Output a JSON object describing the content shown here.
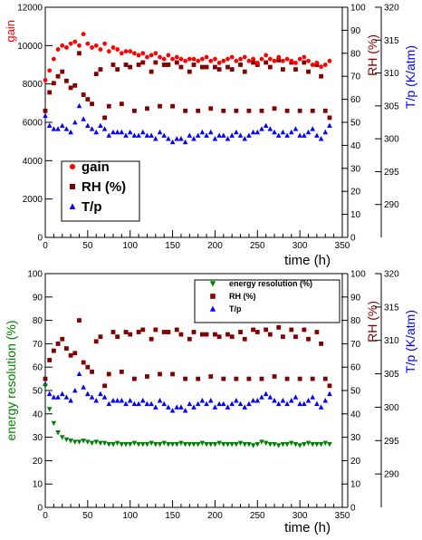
{
  "chart_data": [
    {
      "type": "scatter",
      "x": [
        0,
        5,
        10,
        15,
        20,
        25,
        30,
        35,
        40,
        45,
        50,
        55,
        60,
        65,
        70,
        75,
        80,
        85,
        90,
        95,
        100,
        105,
        110,
        115,
        120,
        125,
        130,
        135,
        140,
        145,
        150,
        155,
        160,
        165,
        170,
        175,
        180,
        185,
        190,
        195,
        200,
        205,
        210,
        215,
        220,
        225,
        230,
        235,
        240,
        245,
        250,
        255,
        260,
        265,
        270,
        275,
        280,
        285,
        290,
        295,
        300,
        305,
        310,
        315,
        320,
        325,
        330,
        335
      ],
      "xlabel": "time (h)",
      "xlim": [
        0,
        350
      ],
      "xticks": [
        "0",
        "50",
        "100",
        "150",
        "200",
        "250",
        "300",
        "350"
      ],
      "grid": false,
      "legend_position": "bottom-left",
      "left_axis": {
        "label": "gain",
        "ylim": [
          0,
          12000
        ],
        "ticks": [
          "0",
          "2000",
          "4000",
          "6000",
          "8000",
          "10000",
          "12000"
        ],
        "color": "#ff0000"
      },
      "middle_axis": {
        "label": "RH (%)",
        "ylim": [
          0,
          100
        ],
        "ticks": [
          "0",
          "10",
          "20",
          "30",
          "40",
          "50",
          "60",
          "70",
          "80",
          "90",
          "100"
        ],
        "color": "#800000"
      },
      "right_axis": {
        "label": "T/p (K/atm)",
        "ylim": [
          285,
          320
        ],
        "ticks": [
          "290",
          "295",
          "300",
          "305",
          "310",
          "315",
          "320"
        ],
        "color": "#0000ff"
      },
      "series": [
        {
          "name": "gain",
          "axis": "left",
          "color": "#ff0000",
          "marker": "circle",
          "values": [
            8200,
            8700,
            9300,
            9800,
            10000,
            9900,
            10100,
            10200,
            10000,
            10600,
            10100,
            9900,
            10000,
            9800,
            10100,
            9700,
            9900,
            9800,
            9600,
            9700,
            9700,
            9600,
            9500,
            9600,
            9400,
            9500,
            9600,
            9400,
            9300,
            9500,
            9300,
            9400,
            9300,
            9200,
            9300,
            9300,
            9200,
            9300,
            9400,
            9200,
            9300,
            9100,
            9200,
            9300,
            9400,
            9200,
            9300,
            9400,
            9200,
            9300,
            9100,
            9300,
            9500,
            9300,
            9200,
            9400,
            9200,
            9300,
            9200,
            9100,
            9300,
            9400,
            9200,
            9000,
            9100,
            8900,
            9000,
            9200
          ]
        },
        {
          "name": "RH (%)",
          "axis": "middle",
          "color": "#800000",
          "marker": "square",
          "values": [
            55,
            63,
            67,
            70,
            72,
            68,
            65,
            66,
            80,
            62,
            60,
            58,
            71,
            73,
            52,
            57,
            75,
            73,
            58,
            75,
            74,
            55,
            75,
            76,
            56,
            72,
            76,
            57,
            75,
            75,
            57,
            76,
            74,
            55,
            72,
            75,
            55,
            74,
            74,
            56,
            74,
            73,
            55,
            74,
            73,
            55,
            75,
            72,
            55,
            76,
            75,
            55,
            76,
            74,
            56,
            77,
            73,
            55,
            76,
            73,
            55,
            76,
            72,
            55,
            75,
            70,
            55,
            52
          ]
        },
        {
          "name": "T/p",
          "axis": "right",
          "color": "#0000ff",
          "marker": "triangle",
          "values": [
            303.5,
            302,
            301.5,
            301.5,
            302,
            301.5,
            301,
            302.5,
            305,
            303,
            302,
            301.5,
            301,
            302,
            301.5,
            300.5,
            301,
            301,
            301,
            300.5,
            301,
            300.5,
            300.5,
            301,
            300.5,
            300.5,
            300,
            301,
            300.5,
            300,
            299.5,
            300,
            300,
            299.5,
            300.5,
            300,
            300.5,
            301,
            300.5,
            301,
            300,
            300.5,
            300.5,
            300,
            300.5,
            301,
            300.5,
            300,
            300.5,
            301,
            301,
            301.5,
            302,
            301.5,
            301,
            300.5,
            301,
            300.5,
            301,
            301.5,
            300.5,
            300.5,
            301,
            301.5,
            300.5,
            300,
            301,
            302
          ]
        }
      ]
    },
    {
      "type": "scatter",
      "x": [
        0,
        5,
        10,
        15,
        20,
        25,
        30,
        35,
        40,
        45,
        50,
        55,
        60,
        65,
        70,
        75,
        80,
        85,
        90,
        95,
        100,
        105,
        110,
        115,
        120,
        125,
        130,
        135,
        140,
        145,
        150,
        155,
        160,
        165,
        170,
        175,
        180,
        185,
        190,
        195,
        200,
        205,
        210,
        215,
        220,
        225,
        230,
        235,
        240,
        245,
        250,
        255,
        260,
        265,
        270,
        275,
        280,
        285,
        290,
        295,
        300,
        305,
        310,
        315,
        320,
        325,
        330,
        335
      ],
      "xlabel": "time (h)",
      "xlim": [
        0,
        350
      ],
      "xticks": [
        "0",
        "50",
        "100",
        "150",
        "200",
        "250",
        "300",
        "350"
      ],
      "grid": false,
      "legend_position": "top-right",
      "left_axis": {
        "label": "energy resolution (%)",
        "ylim": [
          0,
          100
        ],
        "ticks": [
          "0",
          "10",
          "20",
          "30",
          "40",
          "50",
          "60",
          "70",
          "80",
          "90",
          "100"
        ],
        "color": "#008000"
      },
      "middle_axis": {
        "label": "RH (%)",
        "ylim": [
          0,
          100
        ],
        "ticks": [
          "0",
          "10",
          "20",
          "30",
          "40",
          "50",
          "60",
          "70",
          "80",
          "90",
          "100"
        ],
        "color": "#800000"
      },
      "right_axis": {
        "label": "T/p (K/atm)",
        "ylim": [
          285,
          320
        ],
        "ticks": [
          "290",
          "295",
          "300",
          "305",
          "310",
          "315",
          "320"
        ],
        "color": "#0000ff"
      },
      "series": [
        {
          "name": "energy resolution (%)",
          "axis": "left",
          "color": "#008000",
          "marker": "triangle-down",
          "values": [
            52,
            42,
            36,
            32,
            30,
            29,
            28.5,
            28,
            28,
            28.5,
            28,
            27.5,
            28,
            27.5,
            27.5,
            27,
            27,
            27.5,
            27,
            27,
            27,
            27.5,
            27,
            27,
            27,
            27.5,
            27,
            27,
            27.5,
            27,
            27,
            27,
            27.5,
            27,
            27,
            27,
            27,
            27.5,
            27,
            27,
            27,
            27.5,
            27,
            27,
            27,
            27,
            27.5,
            27,
            27,
            26.5,
            27,
            28,
            27.5,
            27,
            27,
            26.5,
            27,
            27,
            27.5,
            27,
            26.5,
            27,
            27.5,
            27,
            27,
            27,
            27.5,
            27
          ]
        },
        {
          "name": "RH (%)",
          "axis": "middle",
          "color": "#800000",
          "marker": "square",
          "values": [
            55,
            63,
            67,
            70,
            72,
            68,
            65,
            66,
            80,
            62,
            60,
            58,
            71,
            73,
            52,
            57,
            75,
            73,
            58,
            75,
            74,
            55,
            75,
            76,
            56,
            72,
            76,
            57,
            75,
            75,
            57,
            76,
            74,
            55,
            72,
            75,
            55,
            74,
            74,
            56,
            74,
            73,
            55,
            74,
            73,
            55,
            75,
            72,
            55,
            76,
            75,
            55,
            76,
            74,
            56,
            77,
            73,
            55,
            76,
            73,
            55,
            76,
            72,
            55,
            75,
            70,
            55,
            52
          ]
        },
        {
          "name": "T/p",
          "axis": "right",
          "color": "#0000ff",
          "marker": "triangle",
          "values": [
            303.5,
            302,
            301.5,
            301.5,
            302,
            301.5,
            301,
            302.5,
            305,
            303,
            302,
            301.5,
            301,
            302,
            301.5,
            300.5,
            301,
            301,
            301,
            300.5,
            301,
            300.5,
            300.5,
            301,
            300.5,
            300.5,
            300,
            301,
            300.5,
            300,
            299.5,
            300,
            300,
            299.5,
            300.5,
            300,
            300.5,
            301,
            300.5,
            301,
            300,
            300.5,
            300.5,
            300,
            300.5,
            301,
            300.5,
            300,
            300.5,
            301,
            301,
            301.5,
            302,
            301.5,
            301,
            300.5,
            301,
            300.5,
            301,
            301.5,
            300.5,
            300.5,
            301,
            301.5,
            300.5,
            300,
            301,
            302
          ]
        }
      ]
    }
  ]
}
